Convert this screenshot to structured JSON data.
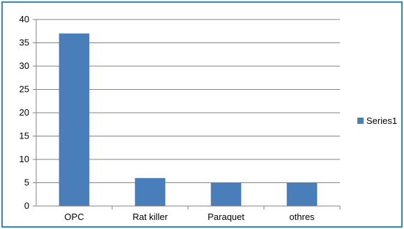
{
  "chart_data": {
    "type": "bar",
    "categories": [
      "OPC",
      "Rat killer",
      "Paraquet",
      "othres"
    ],
    "series": [
      {
        "name": "Series1",
        "values": [
          37,
          6,
          5,
          5
        ],
        "color": "#4a7ebb"
      }
    ],
    "title": "",
    "xlabel": "",
    "ylabel": "",
    "ylim": [
      0,
      40
    ],
    "yticks": [
      0,
      5,
      10,
      15,
      20,
      25,
      30,
      35,
      40
    ],
    "grid": true,
    "legend": "right",
    "colors": {
      "border": "#2e86c1",
      "gridline": "#808080",
      "axis": "#808080"
    }
  }
}
